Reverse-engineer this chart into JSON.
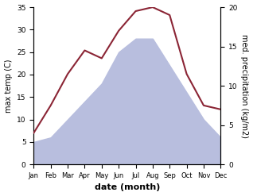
{
  "months": [
    "Jan",
    "Feb",
    "Mar",
    "Apr",
    "May",
    "Jun",
    "Jul",
    "Aug",
    "Sep",
    "Oct",
    "Nov",
    "Dec"
  ],
  "max_temp": [
    5,
    6,
    10,
    14,
    18,
    25,
    28,
    28,
    22,
    16,
    10,
    6
  ],
  "precip": [
    4.0,
    7.5,
    11.5,
    14.5,
    13.5,
    17.0,
    19.5,
    20.0,
    19.0,
    11.5,
    7.5,
    7.0
  ],
  "temp_fill_color": "#b8bede",
  "precip_color": "#8b2535",
  "ylim_temp": [
    0,
    35
  ],
  "ylim_precip": [
    0,
    20
  ],
  "yticks_temp": [
    0,
    5,
    10,
    15,
    20,
    25,
    30,
    35
  ],
  "yticks_precip": [
    0,
    5,
    10,
    15,
    20
  ],
  "xlabel": "date (month)",
  "ylabel_left": "max temp (C)",
  "ylabel_right": "med. precipitation (kg/m2)"
}
